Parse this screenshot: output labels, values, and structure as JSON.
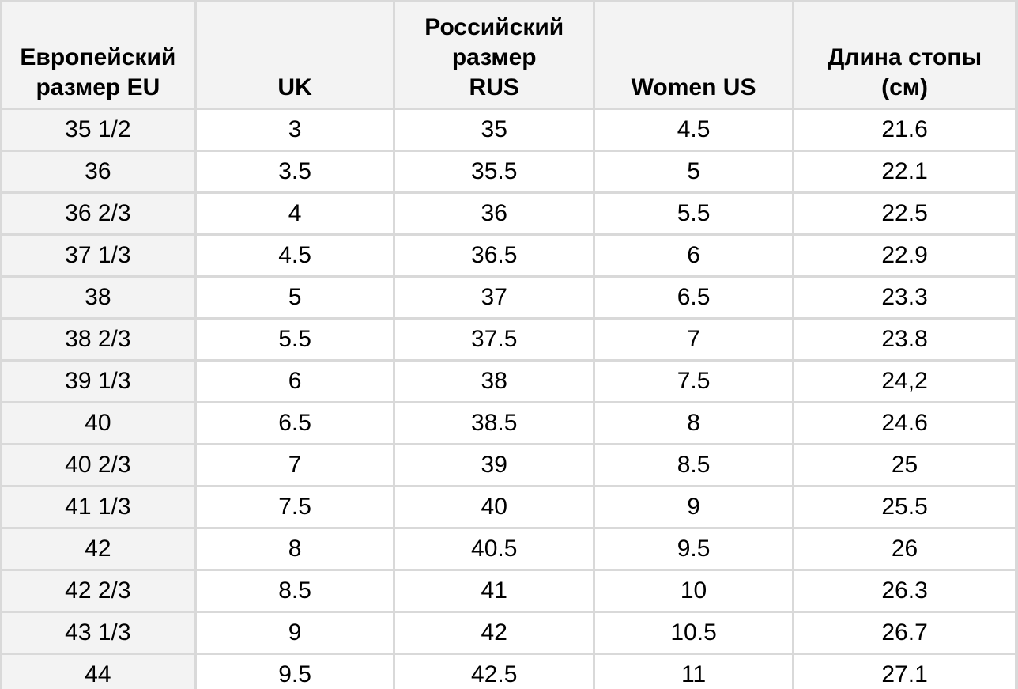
{
  "table": {
    "headers": [
      [
        "Европейский",
        "размер EU"
      ],
      [
        "UK"
      ],
      [
        "Российский",
        "размер",
        "RUS"
      ],
      [
        "Women US"
      ],
      [
        "Длина стопы",
        "(см)"
      ]
    ],
    "rows": [
      [
        "35 1/2",
        "3",
        "35",
        "4.5",
        "21.6"
      ],
      [
        "36",
        "3.5",
        "35.5",
        "5",
        "22.1"
      ],
      [
        "36 2/3",
        "4",
        "36",
        "5.5",
        "22.5"
      ],
      [
        "37 1/3",
        "4.5",
        "36.5",
        "6",
        "22.9"
      ],
      [
        "38",
        "5",
        "37",
        "6.5",
        "23.3"
      ],
      [
        "38 2/3",
        "5.5",
        "37.5",
        "7",
        "23.8"
      ],
      [
        "39 1/3",
        "6",
        "38",
        "7.5",
        "24,2"
      ],
      [
        "40",
        "6.5",
        "38.5",
        "8",
        "24.6"
      ],
      [
        "40 2/3",
        "7",
        "39",
        "8.5",
        "25"
      ],
      [
        "41 1/3",
        "7.5",
        "40",
        "9",
        "25.5"
      ],
      [
        "42",
        "8",
        "40.5",
        "9.5",
        "26"
      ],
      [
        "42 2/3",
        "8.5",
        "41",
        "10",
        "26.3"
      ],
      [
        "43 1/3",
        "9",
        "42",
        "10.5",
        "26.7"
      ],
      [
        "44",
        "9.5",
        "42.5",
        "11",
        "27.1"
      ]
    ]
  },
  "colors": {
    "grid": "#d9d9d9",
    "header_bg": "#f3f3f3",
    "first_col_bg": "#f3f3f3",
    "cell_bg": "#ffffff",
    "text": "#000000"
  }
}
